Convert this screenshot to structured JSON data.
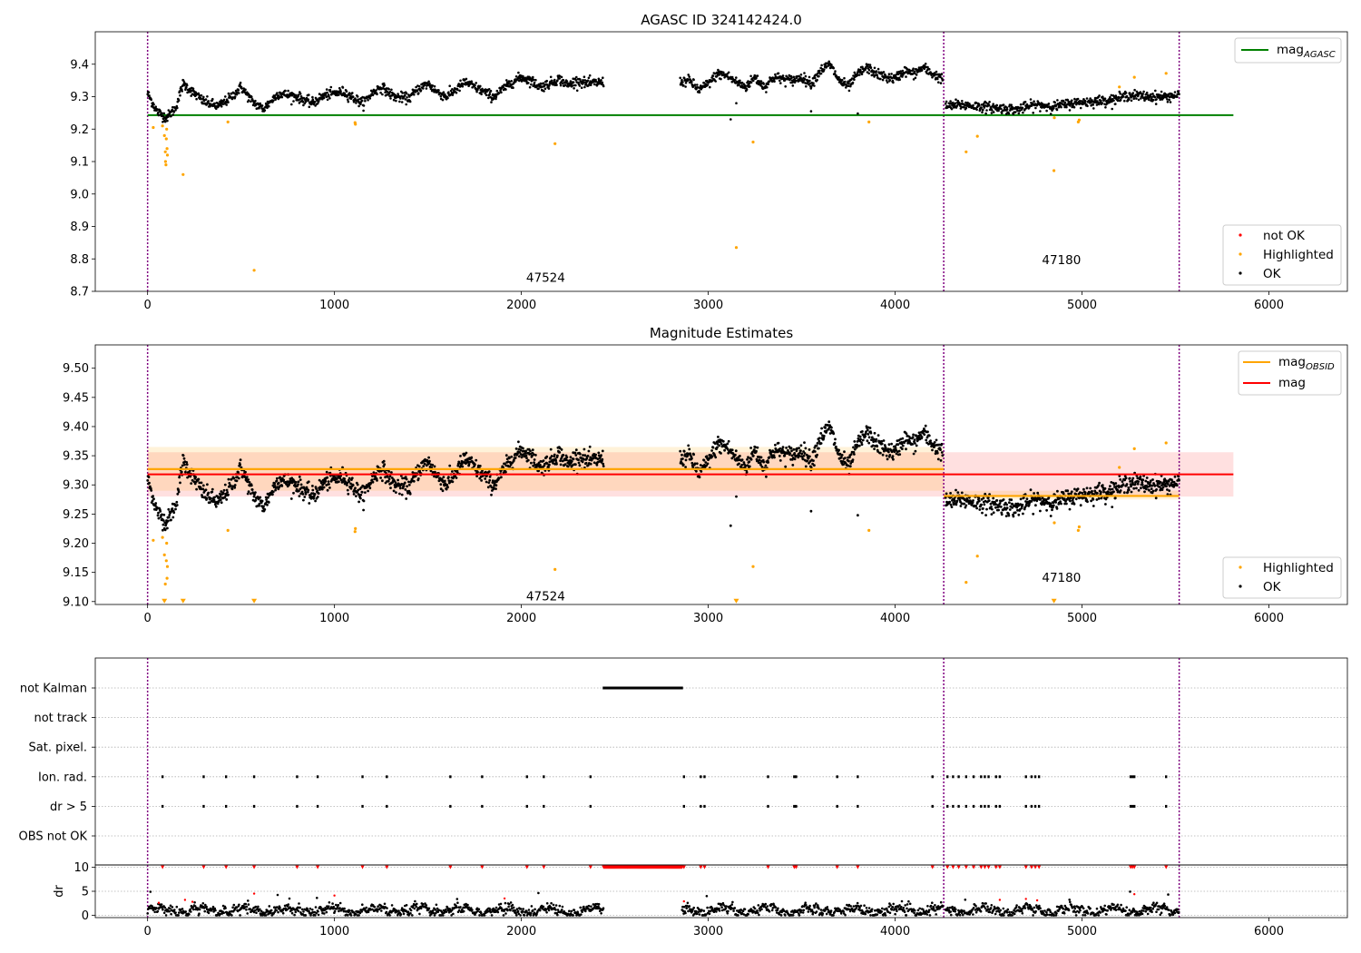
{
  "chart_data": [
    {
      "type": "scatter",
      "panel": "agasc",
      "title": "AGASC ID 324142424.0",
      "xlim": [
        -280,
        6420
      ],
      "ylim": [
        8.7,
        9.5
      ],
      "xticks": [
        0,
        1000,
        2000,
        3000,
        4000,
        5000,
        6000
      ],
      "yticks": [
        8.7,
        8.8,
        8.9,
        9.0,
        9.1,
        9.2,
        9.3,
        9.4
      ],
      "ytick_decimals": 1,
      "obsid_boundaries": [
        0,
        4260,
        5520
      ],
      "obsid_labels": [
        {
          "text": "47524",
          "x": 2130,
          "y": 8.74
        },
        {
          "text": "47180",
          "x": 4890,
          "y": 8.795
        }
      ],
      "line_legend": [
        {
          "label": "mag",
          "sub": "AGASC",
          "color": "#008000",
          "position": "top-right"
        }
      ],
      "point_legend": {
        "position": "bottom-right",
        "entries": [
          {
            "label": "not OK",
            "color": "#ff0000"
          },
          {
            "label": "Highlighted",
            "color": "#ffa500"
          },
          {
            "label": "OK",
            "color": "#000000"
          }
        ]
      },
      "mag_agasc": {
        "value": 9.243,
        "x_range": [
          0,
          5810
        ]
      },
      "ok_trend": [
        [
          0,
          9.31
        ],
        [
          50,
          9.255
        ],
        [
          100,
          9.235
        ],
        [
          150,
          9.265
        ],
        [
          190,
          9.34
        ],
        [
          250,
          9.31
        ],
        [
          300,
          9.285
        ],
        [
          380,
          9.27
        ],
        [
          450,
          9.3
        ],
        [
          500,
          9.33
        ],
        [
          560,
          9.285
        ],
        [
          620,
          9.262
        ],
        [
          700,
          9.31
        ],
        [
          800,
          9.3
        ],
        [
          880,
          9.28
        ],
        [
          950,
          9.305
        ],
        [
          1050,
          9.315
        ],
        [
          1120,
          9.29
        ],
        [
          1150,
          9.28
        ],
        [
          1200,
          9.31
        ],
        [
          1250,
          9.33
        ],
        [
          1320,
          9.3
        ],
        [
          1400,
          9.295
        ],
        [
          1450,
          9.325
        ],
        [
          1500,
          9.34
        ],
        [
          1550,
          9.315
        ],
        [
          1600,
          9.3
        ],
        [
          1700,
          9.345
        ],
        [
          1800,
          9.315
        ],
        [
          1850,
          9.3
        ],
        [
          1950,
          9.345
        ],
        [
          2000,
          9.36
        ],
        [
          2050,
          9.35
        ],
        [
          2100,
          9.33
        ],
        [
          2150,
          9.34
        ],
        [
          2200,
          9.355
        ],
        [
          2250,
          9.335
        ],
        [
          2300,
          9.35
        ],
        [
          2350,
          9.34
        ],
        [
          2440,
          9.345
        ]
      ],
      "ok_trend_2": [
        [
          2850,
          9.345
        ],
        [
          2900,
          9.35
        ],
        [
          2950,
          9.32
        ],
        [
          3000,
          9.34
        ],
        [
          3050,
          9.37
        ],
        [
          3100,
          9.365
        ],
        [
          3150,
          9.345
        ],
        [
          3200,
          9.33
        ],
        [
          3250,
          9.36
        ],
        [
          3300,
          9.33
        ],
        [
          3350,
          9.36
        ],
        [
          3400,
          9.355
        ],
        [
          3450,
          9.35
        ],
        [
          3500,
          9.36
        ],
        [
          3550,
          9.34
        ],
        [
          3600,
          9.38
        ],
        [
          3650,
          9.4
        ],
        [
          3700,
          9.35
        ],
        [
          3750,
          9.33
        ],
        [
          3800,
          9.37
        ],
        [
          3850,
          9.39
        ],
        [
          3900,
          9.37
        ],
        [
          3950,
          9.36
        ],
        [
          4000,
          9.355
        ],
        [
          4050,
          9.38
        ],
        [
          4100,
          9.37
        ],
        [
          4150,
          9.39
        ],
        [
          4200,
          9.37
        ],
        [
          4255,
          9.355
        ]
      ],
      "ok_trend_3": [
        [
          4270,
          9.27
        ],
        [
          4350,
          9.275
        ],
        [
          4450,
          9.27
        ],
        [
          4550,
          9.265
        ],
        [
          4650,
          9.26
        ],
        [
          4750,
          9.275
        ],
        [
          4850,
          9.27
        ],
        [
          4950,
          9.28
        ],
        [
          5050,
          9.285
        ],
        [
          5150,
          9.29
        ],
        [
          5200,
          9.295
        ],
        [
          5250,
          9.305
        ],
        [
          5350,
          9.3
        ],
        [
          5450,
          9.3
        ],
        [
          5520,
          9.305
        ]
      ],
      "ok_scatter": 0.014,
      "ok_outliers": [
        [
          3120,
          9.23
        ],
        [
          3150,
          9.28
        ],
        [
          3550,
          9.255
        ],
        [
          3800,
          9.248
        ]
      ],
      "highlighted": [
        [
          30,
          9.205
        ],
        [
          80,
          9.21
        ],
        [
          90,
          9.18
        ],
        [
          95,
          9.13
        ],
        [
          96,
          9.1
        ],
        [
          98,
          9.09
        ],
        [
          100,
          9.17
        ],
        [
          102,
          9.2
        ],
        [
          104,
          9.14
        ],
        [
          106,
          9.12
        ],
        [
          190,
          9.06
        ],
        [
          430,
          9.222
        ],
        [
          570,
          8.765
        ],
        [
          1110,
          9.22
        ],
        [
          1112,
          9.215
        ],
        [
          2180,
          9.155
        ],
        [
          3150,
          8.835
        ],
        [
          3240,
          9.16
        ],
        [
          3860,
          9.222
        ],
        [
          4380,
          9.13
        ],
        [
          4440,
          9.178
        ],
        [
          4850,
          9.072
        ],
        [
          4852,
          9.235
        ],
        [
          4980,
          9.222
        ],
        [
          4985,
          9.228
        ],
        [
          5200,
          9.33
        ],
        [
          5280,
          9.36
        ],
        [
          5450,
          9.372
        ]
      ]
    },
    {
      "type": "scatter",
      "panel": "estimates",
      "title": "Magnitude Estimates",
      "xlim": [
        -280,
        6420
      ],
      "ylim": [
        9.095,
        9.54
      ],
      "xticks": [
        0,
        1000,
        2000,
        3000,
        4000,
        5000,
        6000
      ],
      "yticks": [
        9.1,
        9.15,
        9.2,
        9.25,
        9.3,
        9.35,
        9.4,
        9.45,
        9.5
      ],
      "ytick_decimals": 2,
      "obsid_boundaries": [
        0,
        4260,
        5520
      ],
      "obsid_labels": [
        {
          "text": "47524",
          "x": 2130,
          "y": 9.108
        },
        {
          "text": "47180",
          "x": 4890,
          "y": 9.14
        }
      ],
      "line_legend": [
        {
          "label": "mag",
          "sub": "OBSID",
          "color": "#ffa500",
          "position": "top-right"
        },
        {
          "label": "mag",
          "sub": "",
          "color": "#ff0000",
          "position": "top-right"
        }
      ],
      "point_legend": {
        "position": "bottom-right",
        "entries": [
          {
            "label": "Highlighted",
            "color": "#ffa500"
          },
          {
            "label": "OK",
            "color": "#000000"
          }
        ]
      },
      "mag": {
        "value": 9.318,
        "band": [
          9.28,
          9.356
        ],
        "x_range": [
          0,
          5810
        ]
      },
      "mag_obsid": [
        {
          "value": 9.327,
          "band": [
            9.29,
            9.365
          ],
          "x_range": [
            0,
            4260
          ]
        },
        {
          "value": 9.281,
          "band": [
            9.275,
            9.29
          ],
          "x_range": [
            4260,
            5520
          ]
        }
      ],
      "clipped_low": [
        [
          90,
          9.1
        ],
        [
          190,
          9.1
        ],
        [
          570,
          9.1
        ],
        [
          3150,
          9.1
        ],
        [
          4850,
          9.1
        ]
      ],
      "highlighted": [
        [
          30,
          9.205
        ],
        [
          80,
          9.21
        ],
        [
          90,
          9.18
        ],
        [
          95,
          9.13
        ],
        [
          100,
          9.17
        ],
        [
          102,
          9.2
        ],
        [
          104,
          9.14
        ],
        [
          106,
          9.16
        ],
        [
          430,
          9.222
        ],
        [
          1110,
          9.22
        ],
        [
          1112,
          9.225
        ],
        [
          2180,
          9.155
        ],
        [
          3240,
          9.16
        ],
        [
          3860,
          9.222
        ],
        [
          4380,
          9.133
        ],
        [
          4440,
          9.178
        ],
        [
          4852,
          9.235
        ],
        [
          4980,
          9.222
        ],
        [
          4985,
          9.228
        ],
        [
          5200,
          9.33
        ],
        [
          5280,
          9.362
        ],
        [
          5450,
          9.372
        ]
      ]
    },
    {
      "type": "scatter",
      "panel": "flags",
      "xlim": [
        -280,
        6420
      ],
      "categories": [
        "not Kalman",
        "not track",
        "Sat. pixel.",
        "Ion. rad.",
        "dr > 5",
        "OBS not OK"
      ],
      "obsid_boundaries": [
        0,
        4260,
        5520
      ],
      "not_kalman_range": [
        2440,
        2860
      ],
      "flag_times": [
        80,
        300,
        420,
        570,
        800,
        910,
        1150,
        1280,
        1620,
        1790,
        2030,
        2120,
        2370,
        2870,
        2960,
        2980,
        3320,
        3460,
        3470,
        3690,
        3800,
        4200,
        4280,
        4310,
        4340,
        4380,
        4420,
        4460,
        4480,
        4500,
        4540,
        4560,
        4700,
        4730,
        4750,
        4770,
        5260,
        5270,
        5280,
        5450
      ]
    },
    {
      "type": "scatter",
      "panel": "dr",
      "ylabel": "dr",
      "xlim": [
        -280,
        6420
      ],
      "ylim": [
        -0.5,
        10.5
      ],
      "yticks": [
        0,
        5,
        10
      ],
      "xticks": [
        0,
        1000,
        2000,
        3000,
        4000,
        5000,
        6000
      ],
      "obsid_boundaries": [
        0,
        4260,
        5520
      ],
      "gap": [
        2440,
        2860
      ],
      "dr_capped": 10
    }
  ]
}
